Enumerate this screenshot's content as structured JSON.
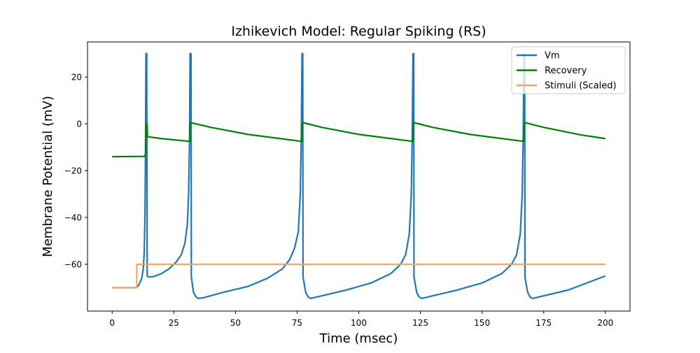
{
  "chart_data": {
    "type": "line",
    "title": "Izhikevich Model: Regular Spiking (RS)",
    "xlabel": "Time (msec)",
    "ylabel": "Membrane Potential (mV)",
    "xlim": [
      -10,
      210
    ],
    "ylim": [
      -80,
      35
    ],
    "xticks": [
      0,
      25,
      50,
      75,
      100,
      125,
      150,
      175,
      200
    ],
    "yticks": [
      -60,
      -40,
      -20,
      0,
      20
    ],
    "ytick_labels": [
      "−60",
      "−40",
      "−20",
      "0",
      "20"
    ],
    "grid": false,
    "legend_position": "upper right",
    "series": [
      {
        "name": "Vm",
        "color": "#1f77b4",
        "points": [
          [
            0,
            -70
          ],
          [
            10,
            -70
          ],
          [
            11,
            -68.5
          ],
          [
            12,
            -66
          ],
          [
            12.6,
            -62
          ],
          [
            13,
            -55
          ],
          [
            13.3,
            -40
          ],
          [
            13.5,
            -15
          ],
          [
            13.7,
            30
          ],
          [
            14,
            30
          ],
          [
            14.2,
            -65
          ],
          [
            15,
            -65.5
          ],
          [
            17,
            -65.2
          ],
          [
            20,
            -64
          ],
          [
            23,
            -62
          ],
          [
            26,
            -59
          ],
          [
            28,
            -56
          ],
          [
            29.5,
            -51
          ],
          [
            30.5,
            -43
          ],
          [
            31,
            -30
          ],
          [
            31.4,
            -5
          ],
          [
            31.6,
            30
          ],
          [
            32,
            30
          ],
          [
            32.1,
            -65.5
          ],
          [
            33,
            -72
          ],
          [
            34,
            -74
          ],
          [
            35,
            -74.6
          ],
          [
            37,
            -74.3
          ],
          [
            45,
            -72
          ],
          [
            55,
            -69.5
          ],
          [
            63,
            -66
          ],
          [
            69,
            -62
          ],
          [
            72,
            -58
          ],
          [
            74,
            -53
          ],
          [
            75.5,
            -46
          ],
          [
            76.3,
            -30
          ],
          [
            76.7,
            -5
          ],
          [
            77,
            30
          ],
          [
            77.3,
            30
          ],
          [
            77.4,
            -65.5
          ],
          [
            78.5,
            -72
          ],
          [
            79.5,
            -74
          ],
          [
            80.5,
            -74.6
          ],
          [
            85,
            -73.5
          ],
          [
            95,
            -71
          ],
          [
            105,
            -68
          ],
          [
            113,
            -64
          ],
          [
            117,
            -60
          ],
          [
            119,
            -56
          ],
          [
            120.5,
            -47
          ],
          [
            121.3,
            -30
          ],
          [
            121.7,
            -5
          ],
          [
            122,
            30
          ],
          [
            122.3,
            30
          ],
          [
            122.4,
            -65.5
          ],
          [
            123.5,
            -72
          ],
          [
            124.5,
            -74
          ],
          [
            125.5,
            -74.6
          ],
          [
            130,
            -73.5
          ],
          [
            140,
            -71
          ],
          [
            150,
            -68
          ],
          [
            158,
            -64
          ],
          [
            162,
            -60
          ],
          [
            164,
            -56
          ],
          [
            165.5,
            -47
          ],
          [
            166.3,
            -30
          ],
          [
            166.7,
            -5
          ],
          [
            167,
            30
          ],
          [
            167.3,
            30
          ],
          [
            167.4,
            -65.5
          ],
          [
            168.5,
            -72
          ],
          [
            169.5,
            -74
          ],
          [
            170.5,
            -74.6
          ],
          [
            175,
            -73.5
          ],
          [
            185,
            -71
          ],
          [
            195,
            -67
          ],
          [
            200,
            -65
          ]
        ]
      },
      {
        "name": "Recovery",
        "color": "#008000",
        "points": [
          [
            0,
            -14
          ],
          [
            13,
            -13.9
          ],
          [
            13.6,
            -13
          ],
          [
            13.8,
            0
          ],
          [
            14.2,
            0
          ],
          [
            14.3,
            -5.5
          ],
          [
            20,
            -6.3
          ],
          [
            31.5,
            -7.5
          ],
          [
            31.6,
            0
          ],
          [
            32,
            0.5
          ],
          [
            40,
            -1.5
          ],
          [
            55,
            -4.5
          ],
          [
            77,
            -7.5
          ],
          [
            77.1,
            0
          ],
          [
            77.5,
            0.5
          ],
          [
            85,
            -1.5
          ],
          [
            100,
            -4.5
          ],
          [
            122,
            -7.5
          ],
          [
            122.1,
            0
          ],
          [
            122.5,
            0.5
          ],
          [
            130,
            -1.5
          ],
          [
            145,
            -4.5
          ],
          [
            167,
            -7.5
          ],
          [
            167.1,
            0
          ],
          [
            167.5,
            0.5
          ],
          [
            175,
            -1.5
          ],
          [
            190,
            -4.7
          ],
          [
            200,
            -6.3
          ]
        ]
      },
      {
        "name": "Stimuli (Scaled)",
        "color": "#f4a46a",
        "points": [
          [
            0,
            -70
          ],
          [
            10,
            -70
          ],
          [
            10,
            -60
          ],
          [
            200,
            -60
          ]
        ]
      }
    ]
  }
}
